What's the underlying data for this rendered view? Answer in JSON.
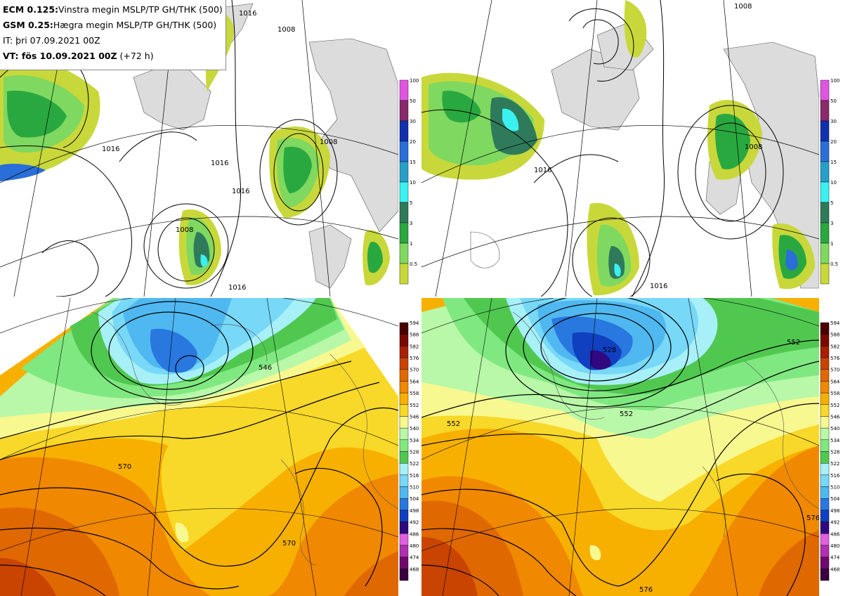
{
  "header": {
    "line1_prefix": "ECM 0.125:",
    "line1_text": "Vinstra megin MSLP/TP GH/THK (500)",
    "line2_prefix": "GSM 0.25:",
    "line2_text": "Hægra megin MSLP/TP GH/THK (500)",
    "line3_text": "IT: þri 07.09.2021 00Z",
    "line4_prefix": "VT: fös 10.09.2021 00Z",
    "line4_text": " (+72 h)"
  },
  "precip_colorbar": {
    "levels": [
      "100",
      "50",
      "30",
      "20",
      "15",
      "10",
      "5",
      "3",
      "1",
      "0.5"
    ],
    "colors": [
      "#e055e0",
      "#8a2a6a",
      "#1030b0",
      "#2a6ed8",
      "#27a0c8",
      "#3af0f0",
      "#2e7a5a",
      "#2aa840",
      "#7fd860",
      "#c8d83a"
    ]
  },
  "thickness_colorbar": {
    "levels": [
      "594",
      "588",
      "582",
      "576",
      "570",
      "564",
      "558",
      "552",
      "546",
      "540",
      "534",
      "528",
      "522",
      "516",
      "510",
      "504",
      "498",
      "492",
      "486",
      "480",
      "474",
      "468"
    ],
    "colors": [
      "#4a0000",
      "#7a0a00",
      "#a82000",
      "#c84400",
      "#e06800",
      "#f08800",
      "#f8b000",
      "#f8d828",
      "#f8f890",
      "#b8f8a8",
      "#80e880",
      "#50c850",
      "#a8f0f8",
      "#78d8f8",
      "#50b8f0",
      "#2878e0",
      "#1040c0",
      "#300880",
      "#e060e0",
      "#b030b0",
      "#700870",
      "#3a0040"
    ]
  },
  "map_top_left": {
    "isobar_labels": [
      "1016",
      "1008",
      "1016",
      "1016",
      "1008",
      "1016",
      "1016",
      "1008"
    ]
  },
  "map_top_right": {
    "isobar_labels": [
      "1008",
      "1016",
      "1016",
      "1008"
    ]
  },
  "map_bottom_left": {
    "contour_labels": [
      "546",
      "570",
      "570"
    ]
  },
  "map_bottom_right": {
    "contour_labels": [
      "528",
      "552",
      "552",
      "552",
      "576",
      "576"
    ]
  }
}
